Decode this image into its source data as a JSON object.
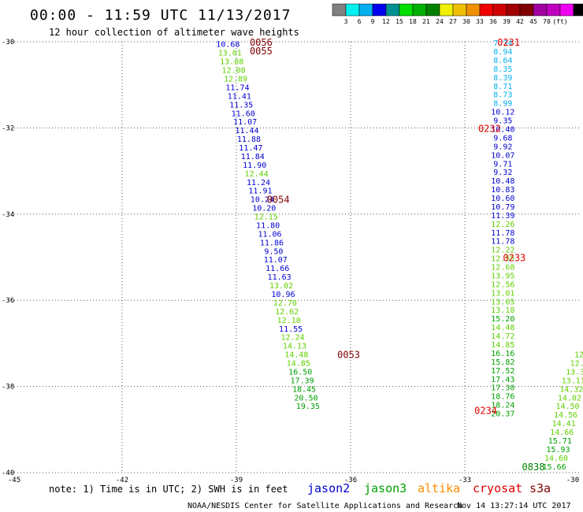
{
  "header": {
    "title": "00:00 - 11:59 UTC 11/13/2017",
    "subtitle": "12 hour collection of altimeter wave heights"
  },
  "colorbar": {
    "colors": [
      "#808080",
      "#00f0f0",
      "#00b0f0",
      "#0000f0",
      "#009090",
      "#00e000",
      "#00b000",
      "#008000",
      "#f0f000",
      "#f0c000",
      "#f09000",
      "#f00000",
      "#d00000",
      "#a00000",
      "#800000",
      "#a000a0",
      "#c000c0",
      "#f000f0",
      "#000000"
    ],
    "labels": [
      "3",
      "6",
      "9",
      "12",
      "15",
      "18",
      "21",
      "24",
      "27",
      "30",
      "33",
      "36",
      "39",
      "42",
      "45",
      "70",
      "(ft)"
    ]
  },
  "footer": {
    "note": "note: 1) Time is in UTC; 2) SWH is in feet",
    "credit": "NOAA/NESDIS Center for Satellite Applications and Research",
    "timestamp": "Nov 14 13:27:14 UTC 2017"
  },
  "chart_data": {
    "type": "scatter",
    "title": "00:00 - 11:59 UTC 11/13/2017",
    "subtitle": "12 hour collection of altimeter wave heights",
    "xlim": [
      -45,
      -30
    ],
    "ylim": [
      -40,
      -30
    ],
    "x_ticks": [
      "-45",
      "-42",
      "-39",
      "-36",
      "-33",
      "-30"
    ],
    "y_ticks": [
      "-30",
      "-32",
      "-34",
      "-36",
      "-38",
      "-40"
    ],
    "grid": true,
    "legend": [
      {
        "name": "jason2",
        "color": "#0000d0"
      },
      {
        "name": "jason3",
        "color": "#00a000"
      },
      {
        "name": "altika",
        "color": "#ff8c00"
      },
      {
        "name": "cryosat",
        "color": "#e00000"
      },
      {
        "name": "s3a",
        "color": "#800000"
      }
    ],
    "series": [
      {
        "name": "jason2",
        "passes": [
          {
            "label": "0054",
            "lon": -37.9,
            "lat": -33.65
          }
        ],
        "points": [
          {
            "lon": -39.22,
            "lat": -30.05,
            "v": "10.68",
            "c": "#0000d0"
          },
          {
            "lon": -39.17,
            "lat": -30.25,
            "v": "13.01",
            "c": "#60d000"
          },
          {
            "lon": -39.12,
            "lat": -30.45,
            "v": "13.08",
            "c": "#60d000"
          },
          {
            "lon": -39.07,
            "lat": -30.65,
            "v": "12.08",
            "c": "#60d000"
          },
          {
            "lon": -39.02,
            "lat": -30.85,
            "v": "12.89",
            "c": "#60d000"
          },
          {
            "lon": -38.97,
            "lat": -31.05,
            "v": "11.74",
            "c": "#0000d0"
          },
          {
            "lon": -38.92,
            "lat": -31.25,
            "v": "11.41",
            "c": "#0000d0"
          },
          {
            "lon": -38.87,
            "lat": -31.45,
            "v": "11.35",
            "c": "#0000d0"
          },
          {
            "lon": -38.82,
            "lat": -31.65,
            "v": "11.60",
            "c": "#0000d0"
          },
          {
            "lon": -38.77,
            "lat": -31.85,
            "v": "11.07",
            "c": "#0000d0"
          },
          {
            "lon": -38.72,
            "lat": -32.05,
            "v": "11.44",
            "c": "#0000d0"
          },
          {
            "lon": -38.67,
            "lat": -32.25,
            "v": "11.88",
            "c": "#0000d0"
          },
          {
            "lon": -38.62,
            "lat": -32.45,
            "v": "11.47",
            "c": "#0000d0"
          },
          {
            "lon": -38.57,
            "lat": -32.65,
            "v": "11.84",
            "c": "#0000d0"
          },
          {
            "lon": -38.52,
            "lat": -32.85,
            "v": "11.90",
            "c": "#0000d0"
          },
          {
            "lon": -38.47,
            "lat": -33.05,
            "v": "12.44",
            "c": "#60d000"
          },
          {
            "lon": -38.42,
            "lat": -33.25,
            "v": "11.24",
            "c": "#0000d0"
          },
          {
            "lon": -38.37,
            "lat": -33.45,
            "v": "11.91",
            "c": "#0000d0"
          },
          {
            "lon": -38.32,
            "lat": -33.65,
            "v": "10.24",
            "c": "#0000d0"
          },
          {
            "lon": -38.27,
            "lat": -33.85,
            "v": "10.20",
            "c": "#0000d0"
          },
          {
            "lon": -38.22,
            "lat": -34.05,
            "v": "12.15",
            "c": "#60d000"
          },
          {
            "lon": -38.17,
            "lat": -34.25,
            "v": "11.80",
            "c": "#0000d0"
          },
          {
            "lon": -38.12,
            "lat": -34.45,
            "v": "11.06",
            "c": "#0000d0"
          },
          {
            "lon": -38.07,
            "lat": -34.65,
            "v": "11.86",
            "c": "#0000d0"
          },
          {
            "lon": -38.02,
            "lat": -34.85,
            "v": "9.50",
            "c": "#0000d0"
          },
          {
            "lon": -37.97,
            "lat": -35.05,
            "v": "11.07",
            "c": "#0000d0"
          },
          {
            "lon": -37.92,
            "lat": -35.25,
            "v": "11.66",
            "c": "#0000d0"
          },
          {
            "lon": -37.87,
            "lat": -35.45,
            "v": "11.63",
            "c": "#0000d0"
          },
          {
            "lon": -37.82,
            "lat": -35.65,
            "v": "13.02",
            "c": "#60d000"
          },
          {
            "lon": -37.77,
            "lat": -35.85,
            "v": "10.96",
            "c": "#0000d0"
          },
          {
            "lon": -37.72,
            "lat": -36.05,
            "v": "12.70",
            "c": "#60d000"
          },
          {
            "lon": -37.67,
            "lat": -36.25,
            "v": "12.62",
            "c": "#60d000"
          },
          {
            "lon": -37.62,
            "lat": -36.45,
            "v": "12.10",
            "c": "#60d000"
          },
          {
            "lon": -37.57,
            "lat": -36.65,
            "v": "11.55",
            "c": "#0000d0"
          },
          {
            "lon": -37.52,
            "lat": -36.85,
            "v": "12.24",
            "c": "#60d000"
          },
          {
            "lon": -37.47,
            "lat": -37.05,
            "v": "14.13",
            "c": "#60d000"
          },
          {
            "lon": -37.42,
            "lat": -37.25,
            "v": "14.48",
            "c": "#60d000"
          },
          {
            "lon": -37.37,
            "lat": -37.45,
            "v": "14.85",
            "c": "#60d000"
          },
          {
            "lon": -37.32,
            "lat": -37.65,
            "v": "16.50",
            "c": "#00a000"
          },
          {
            "lon": -37.27,
            "lat": -37.85,
            "v": "17.39",
            "c": "#00a000"
          },
          {
            "lon": -37.22,
            "lat": -38.05,
            "v": "18.45",
            "c": "#00a000"
          },
          {
            "lon": -37.17,
            "lat": -38.25,
            "v": "20.50",
            "c": "#00a000"
          },
          {
            "lon": -37.12,
            "lat": -38.45,
            "v": "19.35",
            "c": "#00a000"
          }
        ]
      },
      {
        "name": "s3a",
        "passes": [
          {
            "label": "0056",
            "lon": -38.35,
            "lat": -30.0
          },
          {
            "label": "0055",
            "lon": -38.35,
            "lat": -30.2
          },
          {
            "label": "0053",
            "lon": -36.05,
            "lat": -37.25
          },
          {
            "label": "0838",
            "lon": -31.2,
            "lat": -39.85
          }
        ],
        "points": [
          {
            "lon": -32.0,
            "lat": -30.02,
            "v": "7.34",
            "c": "#00b0f0"
          },
          {
            "lon": -32.0,
            "lat": -30.22,
            "v": "8.94",
            "c": "#00b0f0"
          },
          {
            "lon": -32.0,
            "lat": -30.42,
            "v": "8.64",
            "c": "#00b0f0"
          },
          {
            "lon": -32.0,
            "lat": -30.62,
            "v": "8.35",
            "c": "#00b0f0"
          },
          {
            "lon": -32.0,
            "lat": -30.82,
            "v": "8.39",
            "c": "#00b0f0"
          },
          {
            "lon": -32.0,
            "lat": -31.02,
            "v": "8.71",
            "c": "#00b0f0"
          },
          {
            "lon": -32.0,
            "lat": -31.22,
            "v": "8.73",
            "c": "#00b0f0"
          },
          {
            "lon": -32.0,
            "lat": -31.42,
            "v": "8.99",
            "c": "#00b0f0"
          },
          {
            "lon": -32.0,
            "lat": -31.62,
            "v": "10.12",
            "c": "#0000d0"
          },
          {
            "lon": -32.0,
            "lat": -31.82,
            "v": "9.35",
            "c": "#0000d0"
          },
          {
            "lon": -32.0,
            "lat": -32.02,
            "v": "10.40",
            "c": "#0000d0"
          },
          {
            "lon": -32.0,
            "lat": -32.22,
            "v": "9.68",
            "c": "#0000d0"
          },
          {
            "lon": -32.0,
            "lat": -32.42,
            "v": "9.92",
            "c": "#0000d0"
          },
          {
            "lon": -32.0,
            "lat": -32.62,
            "v": "10.07",
            "c": "#0000d0"
          },
          {
            "lon": -32.0,
            "lat": -32.82,
            "v": "9.71",
            "c": "#0000d0"
          },
          {
            "lon": -32.0,
            "lat": -33.02,
            "v": "9.32",
            "c": "#0000d0"
          },
          {
            "lon": -32.0,
            "lat": -33.22,
            "v": "10.48",
            "c": "#0000d0"
          },
          {
            "lon": -32.0,
            "lat": -33.42,
            "v": "10.83",
            "c": "#0000d0"
          },
          {
            "lon": -32.0,
            "lat": -33.62,
            "v": "10.60",
            "c": "#0000d0"
          },
          {
            "lon": -32.0,
            "lat": -33.82,
            "v": "10.79",
            "c": "#0000d0"
          },
          {
            "lon": -32.0,
            "lat": -34.02,
            "v": "11.39",
            "c": "#0000d0"
          },
          {
            "lon": -32.0,
            "lat": -34.22,
            "v": "12.26",
            "c": "#60d000"
          },
          {
            "lon": -32.0,
            "lat": -34.42,
            "v": "11.78",
            "c": "#0000d0"
          },
          {
            "lon": -32.0,
            "lat": -34.62,
            "v": "11.78",
            "c": "#0000d0"
          },
          {
            "lon": -32.0,
            "lat": -34.82,
            "v": "12.22",
            "c": "#60d000"
          },
          {
            "lon": -32.0,
            "lat": -35.02,
            "v": "12.55",
            "c": "#60d000"
          },
          {
            "lon": -32.0,
            "lat": -35.22,
            "v": "12.68",
            "c": "#60d000"
          },
          {
            "lon": -32.0,
            "lat": -35.42,
            "v": "13.95",
            "c": "#60d000"
          },
          {
            "lon": -32.0,
            "lat": -35.62,
            "v": "12.56",
            "c": "#60d000"
          },
          {
            "lon": -32.0,
            "lat": -35.82,
            "v": "13.01",
            "c": "#60d000"
          },
          {
            "lon": -32.0,
            "lat": -36.02,
            "v": "13.65",
            "c": "#60d000"
          },
          {
            "lon": -32.0,
            "lat": -36.22,
            "v": "13.18",
            "c": "#60d000"
          },
          {
            "lon": -32.0,
            "lat": -36.42,
            "v": "15.20",
            "c": "#00a000"
          },
          {
            "lon": -32.0,
            "lat": -36.62,
            "v": "14.48",
            "c": "#60d000"
          },
          {
            "lon": -32.0,
            "lat": -36.82,
            "v": "14.72",
            "c": "#60d000"
          },
          {
            "lon": -32.0,
            "lat": -37.02,
            "v": "14.85",
            "c": "#60d000"
          },
          {
            "lon": -32.0,
            "lat": -37.22,
            "v": "16.16",
            "c": "#00a000"
          },
          {
            "lon": -32.0,
            "lat": -37.42,
            "v": "15.82",
            "c": "#00a000"
          },
          {
            "lon": -32.0,
            "lat": -37.62,
            "v": "17.52",
            "c": "#00a000"
          },
          {
            "lon": -32.0,
            "lat": -37.82,
            "v": "17.43",
            "c": "#00a000"
          },
          {
            "lon": -32.0,
            "lat": -38.02,
            "v": "17.30",
            "c": "#00a000"
          },
          {
            "lon": -32.0,
            "lat": -38.22,
            "v": "18.76",
            "c": "#00a000"
          },
          {
            "lon": -32.0,
            "lat": -38.42,
            "v": "18.24",
            "c": "#00a000"
          },
          {
            "lon": -32.0,
            "lat": -38.62,
            "v": "20.37",
            "c": "#00a000"
          }
        ]
      },
      {
        "name": "cryosat",
        "passes": [
          {
            "label": "0231",
            "lon": -31.85,
            "lat": -30.0
          },
          {
            "label": "0232",
            "lon": -32.35,
            "lat": -32.0
          },
          {
            "label": "0233",
            "lon": -31.7,
            "lat": -35.0
          },
          {
            "label": "0234",
            "lon": -32.45,
            "lat": -38.55
          }
        ],
        "points": [
          {
            "lon": -30.0,
            "lat": -37.25,
            "v": "12",
            "c": "#60d000"
          },
          {
            "lon": -30.05,
            "lat": -37.45,
            "v": "12.",
            "c": "#60d000"
          },
          {
            "lon": -30.1,
            "lat": -37.65,
            "v": "13.3",
            "c": "#60d000"
          },
          {
            "lon": -30.15,
            "lat": -37.85,
            "v": "13.11",
            "c": "#60d000"
          },
          {
            "lon": -30.2,
            "lat": -38.05,
            "v": "14.32",
            "c": "#60d000"
          },
          {
            "lon": -30.25,
            "lat": -38.25,
            "v": "14.02",
            "c": "#60d000"
          },
          {
            "lon": -30.3,
            "lat": -38.45,
            "v": "14.50",
            "c": "#60d000"
          },
          {
            "lon": -30.35,
            "lat": -38.65,
            "v": "14.56",
            "c": "#60d000"
          },
          {
            "lon": -30.4,
            "lat": -38.85,
            "v": "14.41",
            "c": "#60d000"
          },
          {
            "lon": -30.45,
            "lat": -39.05,
            "v": "14.66",
            "c": "#60d000"
          },
          {
            "lon": -30.5,
            "lat": -39.25,
            "v": "15.71",
            "c": "#00a000"
          },
          {
            "lon": -30.55,
            "lat": -39.45,
            "v": "15.93",
            "c": "#00a000"
          },
          {
            "lon": -30.6,
            "lat": -39.65,
            "v": "14.60",
            "c": "#60d000"
          },
          {
            "lon": -30.65,
            "lat": -39.85,
            "v": "15.66",
            "c": "#00a000"
          }
        ]
      }
    ]
  }
}
